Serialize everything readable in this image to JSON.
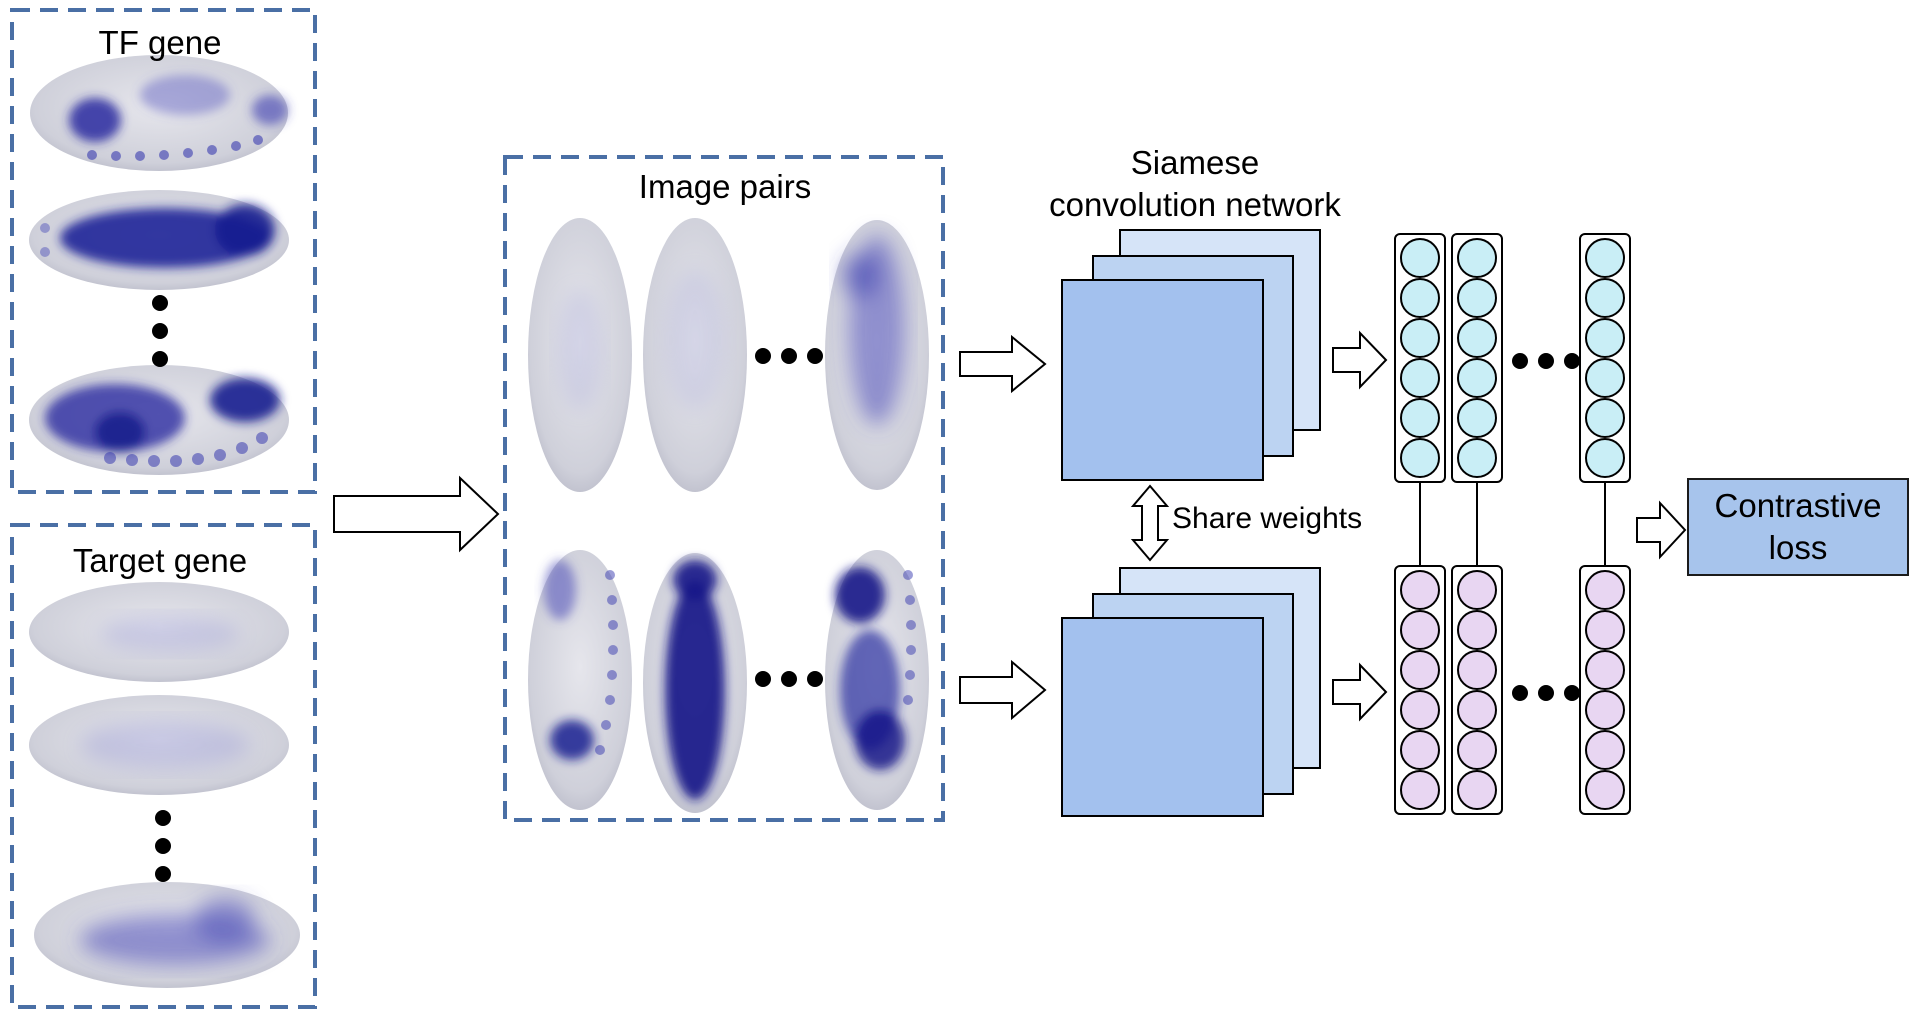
{
  "panels": {
    "tf_gene": {
      "title": "TF gene"
    },
    "target_gene": {
      "title": "Target gene"
    },
    "image_pairs": {
      "title": "Image pairs"
    }
  },
  "network": {
    "title_line1": "Siamese",
    "title_line2": "convolution network",
    "share_label": "Share weights"
  },
  "loss": {
    "line1": "Contrastive",
    "line2": "loss"
  },
  "colors": {
    "dashed_border": "#4a6fa5",
    "conv_front": "#a3c1ee",
    "conv_mid": "#bcd3f2",
    "conv_back": "#d6e4f8",
    "node_top": "#c9eef6",
    "node_bottom": "#e8d6f2",
    "loss_box": "#a7c4ec",
    "stain": "#2a2ca0",
    "embryo_bg": "#d8d8de"
  },
  "icons": [
    "right-arrow-icon",
    "double-vertical-arrow-icon",
    "ellipsis-icon"
  ]
}
